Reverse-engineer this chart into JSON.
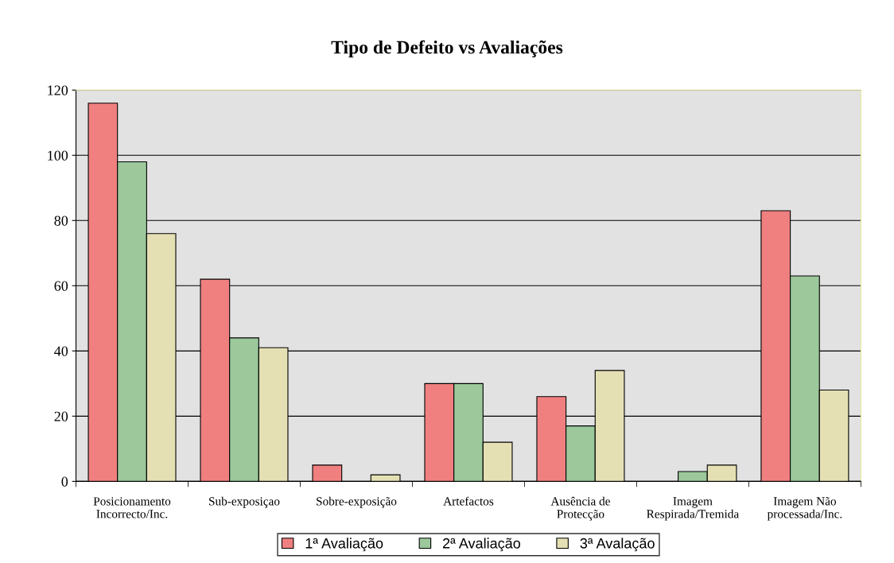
{
  "chart_data": {
    "type": "bar",
    "title": "Tipo de Defeito vs Avaliações",
    "categories": [
      "Posicionamento\nIncorrecto/Inc.",
      "Sub-exposiçao",
      "Sobre-exposição",
      "Artefactos",
      "Ausência de\nProtecção",
      "Imagem\nRespirada/Tremida",
      "Imagem Não\nprocessada/Inc."
    ],
    "series": [
      {
        "name": "1ª Avaliação",
        "color": "#f08080",
        "values": [
          116,
          62,
          5,
          30,
          26,
          null,
          83
        ]
      },
      {
        "name": "2ª Avaliação",
        "color": "#9cc89c",
        "values": [
          98,
          44,
          null,
          30,
          17,
          3,
          63
        ]
      },
      {
        "name": "3ª Avalação",
        "color": "#e4e0b4",
        "values": [
          76,
          41,
          2,
          12,
          34,
          5,
          28
        ]
      }
    ],
    "ylim": [
      0,
      120
    ],
    "yticks": [
      0,
      20,
      40,
      60,
      80,
      100,
      120
    ],
    "grid": "y",
    "legend": "bottom"
  }
}
